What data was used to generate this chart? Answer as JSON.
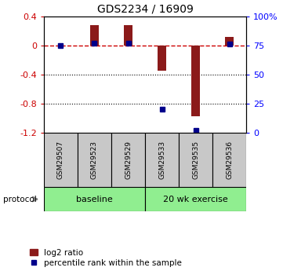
{
  "title": "GDS2234 / 16909",
  "samples": [
    "GSM29507",
    "GSM29523",
    "GSM29529",
    "GSM29533",
    "GSM29535",
    "GSM29536"
  ],
  "log2_ratio": [
    0.0,
    0.28,
    0.28,
    -0.35,
    -0.97,
    0.12
  ],
  "percentile_rank": [
    75,
    77,
    77,
    20,
    2,
    76
  ],
  "groups": [
    {
      "label": "baseline",
      "samples": [
        0,
        1,
        2
      ],
      "color": "#90ee90"
    },
    {
      "label": "20 wk exercise",
      "samples": [
        3,
        4,
        5
      ],
      "color": "#90ee90"
    }
  ],
  "ylim_left": [
    -1.2,
    0.4
  ],
  "ylim_right": [
    0,
    100
  ],
  "yticks_left": [
    0.4,
    0.0,
    -0.4,
    -0.8,
    -1.2
  ],
  "yticks_right": [
    100,
    75,
    50,
    25,
    0
  ],
  "bar_color": "#8b1a1a",
  "dot_color": "#00008b",
  "hline_color": "#cc0000",
  "grid_color": "#000000",
  "plot_bg": "#ffffff",
  "sample_box_color": "#c8c8c8",
  "legend_dot_label": "percentile rank within the sample",
  "legend_bar_label": "log2 ratio",
  "bar_width": 0.25
}
